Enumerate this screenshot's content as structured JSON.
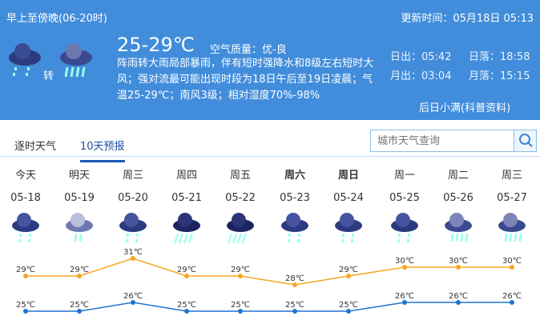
{
  "header": {
    "period": "早上至傍晚(06-20时)",
    "update_time": "更新时间：05月18日 05:13",
    "temperature": "25-29℃",
    "air_quality": "空气质量：优-良",
    "transition": "转",
    "description": "阵雨转大雨局部暴雨，伴有短时强降水和8级左右短时大风；强对流最可能出现时段为18日午后至19日凌晨；气温25-29℃；南风3级；相对湿度70%-98%",
    "sunrise": "日出：05:42",
    "sunset": "日落：18:58",
    "moonrise": "月出：03:04",
    "moonset": "月落：15:15",
    "lore": "后日小满(科普资料)",
    "icons": [
      "showers-icon",
      "heavy-rain-icon"
    ]
  },
  "tabs": [
    {
      "label": "逐时天气"
    },
    {
      "label": "10天预报",
      "active": true
    }
  ],
  "search": {
    "placeholder": "城市天气查询"
  },
  "days": [
    {
      "weekday": "今天",
      "date": "05-18",
      "icon": "showers"
    },
    {
      "weekday": "明天",
      "date": "05-19",
      "icon": "light-rain"
    },
    {
      "weekday": "周三",
      "date": "05-20",
      "icon": "showers"
    },
    {
      "weekday": "周四",
      "date": "05-21",
      "icon": "rainstorm"
    },
    {
      "weekday": "周五",
      "date": "05-22",
      "icon": "rainstorm"
    },
    {
      "weekday": "周六",
      "date": "05-23",
      "icon": "showers",
      "bold": true
    },
    {
      "weekday": "日",
      "date": "05-24",
      "icon": "showers",
      "bold": true
    },
    {
      "weekday": "周一",
      "date": "05-25",
      "icon": "showers"
    },
    {
      "weekday": "周二",
      "date": "05-26",
      "icon": "heavy-rain"
    },
    {
      "weekday": "周三",
      "date": "05-27",
      "icon": "heavy-rain"
    }
  ],
  "chart_data": {
    "type": "line",
    "categories": [
      "05-18",
      "05-19",
      "05-20",
      "05-21",
      "05-22",
      "05-23",
      "05-24",
      "05-25",
      "05-26",
      "05-27"
    ],
    "series": [
      {
        "values": [
          29,
          29,
          31,
          29,
          29,
          28,
          29,
          30,
          30,
          30
        ],
        "color": "#f5a623"
      },
      {
        "values": [
          25,
          25,
          26,
          25,
          25,
          25,
          25,
          26,
          26,
          26
        ],
        "color": "#1f73d1"
      }
    ],
    "unit": "℃"
  }
}
